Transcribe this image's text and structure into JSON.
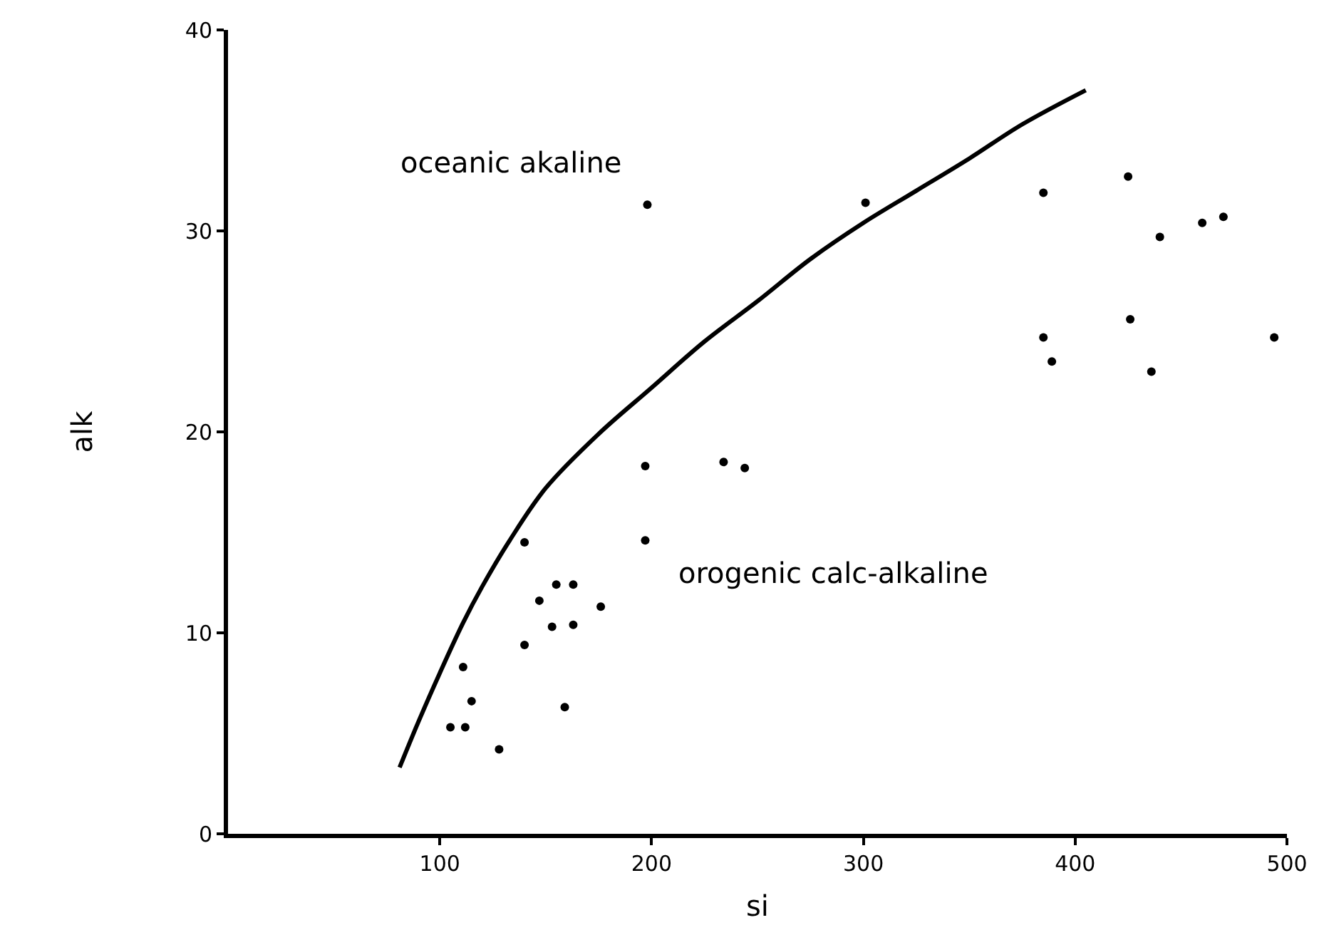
{
  "chart_data": {
    "type": "scatter",
    "xlabel": "si",
    "ylabel": "alk",
    "annotations": [
      "oceanic akaline",
      "orogenic calc-alkaline"
    ],
    "xlim": [
      0,
      500
    ],
    "ylim": [
      0,
      40
    ],
    "xticks": [
      100,
      200,
      300,
      400,
      500
    ],
    "yticks": [
      0,
      10,
      20,
      30,
      40
    ],
    "marker": "circle",
    "series": [
      {
        "color": "#000000",
        "x": [
          140,
          197,
          155,
          163,
          147,
          176,
          153,
          163,
          140,
          111,
          115,
          159,
          105,
          112,
          128,
          197,
          234,
          244,
          198,
          301,
          385,
          425,
          440,
          460,
          470,
          426,
          385,
          389,
          436,
          494
        ],
        "values": [
          14.5,
          14.6,
          12.4,
          12.4,
          11.6,
          11.3,
          10.3,
          10.4,
          9.4,
          8.3,
          6.6,
          6.3,
          5.3,
          5.3,
          4.2,
          18.3,
          18.5,
          18.2,
          31.3,
          31.4,
          31.9,
          32.7,
          29.7,
          30.4,
          30.7,
          25.6,
          24.7,
          23.5,
          23.0,
          24.7
        ]
      },
      {
        "type": "line",
        "color": "#000000",
        "line_style": "solid",
        "marker": "none",
        "x": [
          81,
          90,
          100,
          111,
          120,
          133,
          150,
          175,
          200,
          225,
          250,
          275,
          300,
          325,
          350,
          375,
          405
        ],
        "values": [
          3.3,
          5.6,
          8.0,
          10.5,
          12.3,
          14.6,
          17.2,
          19.9,
          22.2,
          24.5,
          26.5,
          28.6,
          30.4,
          32.0,
          33.6,
          35.3,
          37.0
        ]
      }
    ]
  }
}
